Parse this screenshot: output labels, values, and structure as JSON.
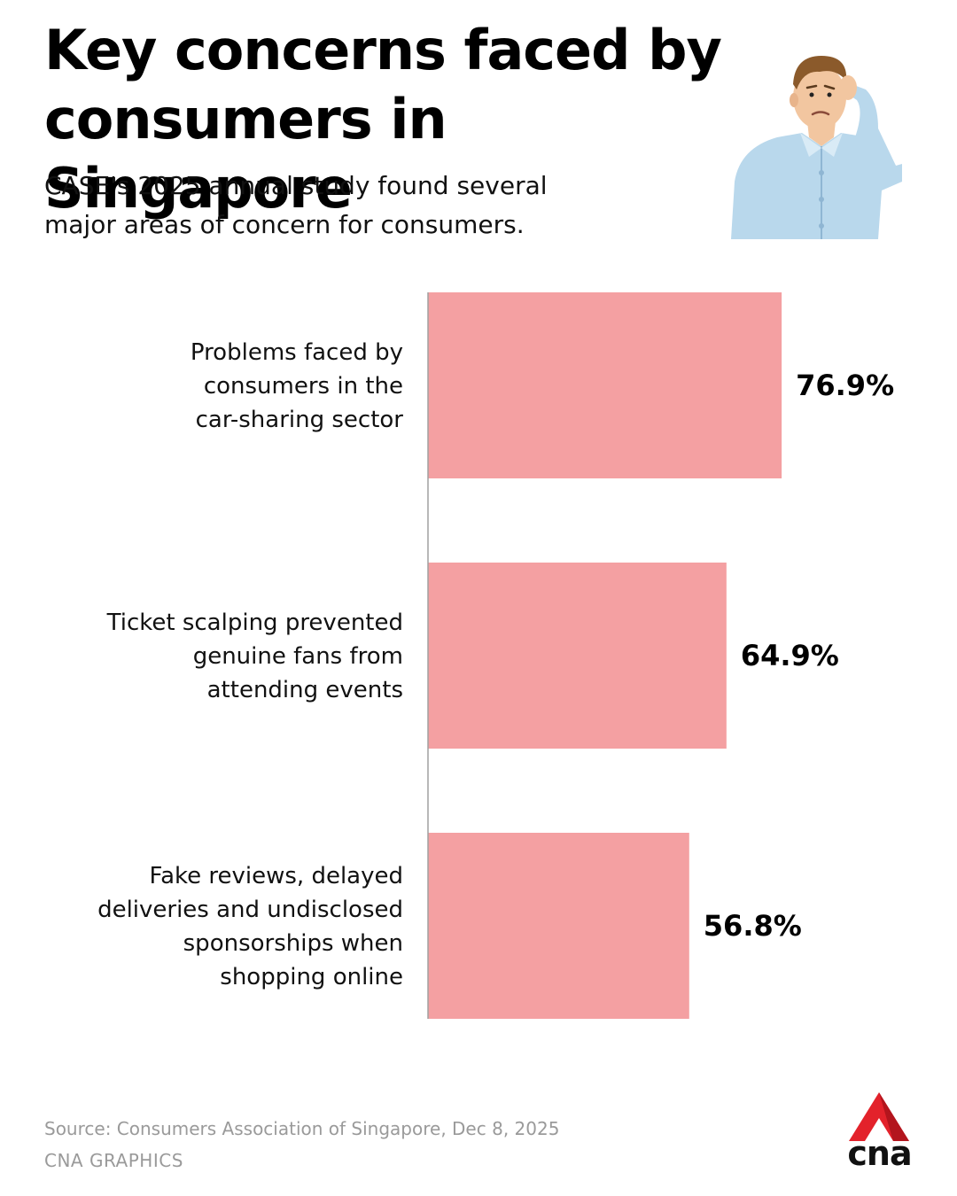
{
  "header": {
    "title": "Key concerns faced by consumers in Singapore",
    "subtitle": "CASE's 2025 annual study found several major areas of concern for consumers."
  },
  "illustration": {
    "icon": "worried-man-scratching-head-icon"
  },
  "chart_data": {
    "type": "bar",
    "orientation": "horizontal",
    "categories": [
      [
        "Problems faced by",
        "consumers in the",
        "car-sharing sector"
      ],
      [
        "Ticket scalping prevented",
        "genuine fans from",
        "attending events"
      ],
      [
        "Fake reviews, delayed",
        "deliveries and undisclosed",
        "sponsorships when",
        "shopping online"
      ]
    ],
    "values": [
      76.9,
      64.9,
      56.8
    ],
    "value_labels": [
      "76.9%",
      "64.9%",
      "56.8%"
    ],
    "unit": "%",
    "xlim": [
      0,
      100
    ],
    "grid": false,
    "legend": "none",
    "bar_color": "#f4a0a2",
    "axis_color": "#a0a0a0"
  },
  "footer": {
    "source": "Source: Consumers Association of Singapore, Dec 8, 2025",
    "credit": "CNA GRAPHICS",
    "logo_text": "cna",
    "logo_color": "#e3222b"
  }
}
